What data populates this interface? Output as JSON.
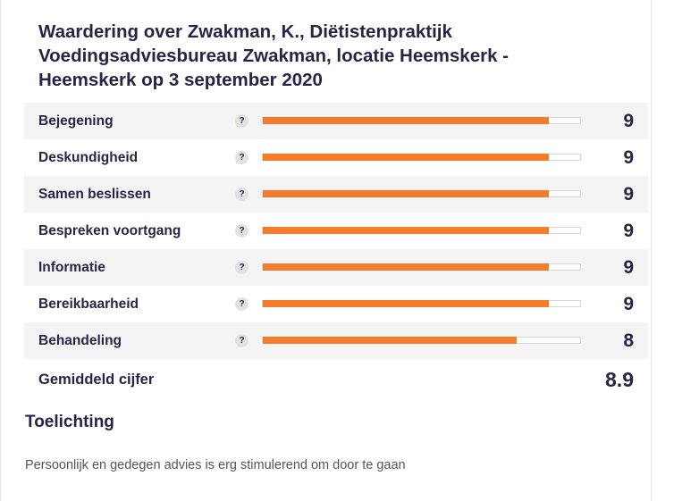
{
  "title": "Waardering over Zwakman, K., Diëtistenpraktijk Voedingsadviesbureau Zwakman, locatie Heemskerk - Heemskerk op 3 september 2020",
  "help_glyph": "?",
  "ratings": [
    {
      "label": "Bejegening",
      "score": "9",
      "value": 9
    },
    {
      "label": "Deskundigheid",
      "score": "9",
      "value": 9
    },
    {
      "label": "Samen beslissen",
      "score": "9",
      "value": 9
    },
    {
      "label": "Bespreken voortgang",
      "score": "9",
      "value": 9
    },
    {
      "label": "Informatie",
      "score": "9",
      "value": 9
    },
    {
      "label": "Bereikbaarheid",
      "score": "9",
      "value": 9
    },
    {
      "label": "Behandeling",
      "score": "8",
      "value": 8
    }
  ],
  "scale_max": 10,
  "average": {
    "label": "Gemiddeld cijfer",
    "score": "8.9"
  },
  "toelichting": {
    "heading": "Toelichting",
    "text": "Persoonlijk en gedegen advies is erg stimulerend om door te gaan"
  },
  "colors": {
    "bar_fill": "#f47c2a",
    "text": "#2a2346"
  }
}
